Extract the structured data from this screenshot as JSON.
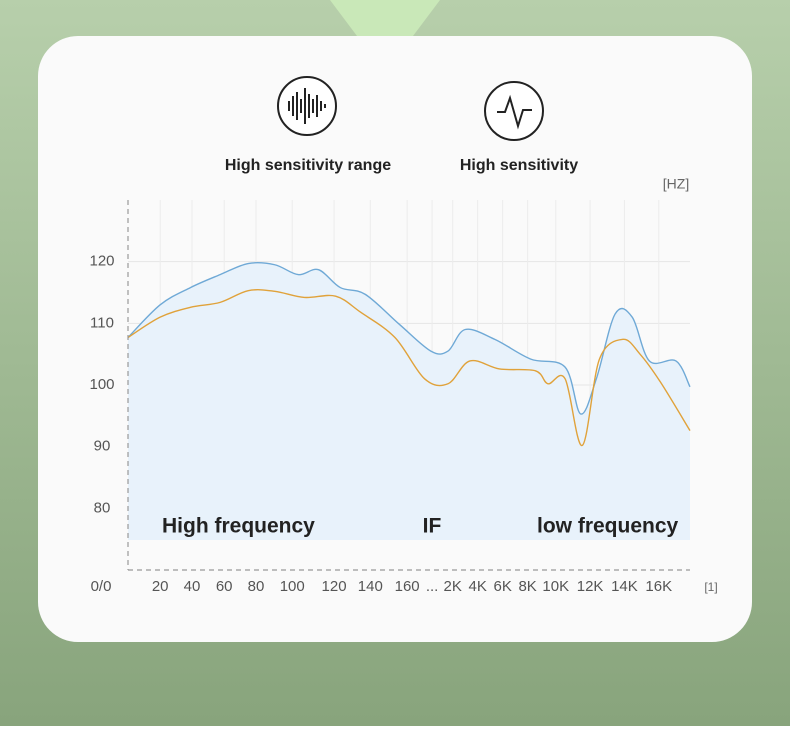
{
  "chart_data": {
    "type": "line",
    "legend": [
      "High sensitivity range",
      "High sensitivity"
    ],
    "y_label": "[HZ]",
    "x_label": "[1]",
    "origin_label": "0/0",
    "annotations": [
      "High frequency",
      "IF",
      "low frequency"
    ],
    "xlim": [
      0,
      18
    ],
    "ylim": [
      70,
      130
    ],
    "yticks": [
      80,
      90,
      100,
      110,
      120
    ],
    "xticks": [
      {
        "value": 1.03,
        "label": "20"
      },
      {
        "value": 2.05,
        "label": "40"
      },
      {
        "value": 3.08,
        "label": "60"
      },
      {
        "value": 4.1,
        "label": "80"
      },
      {
        "value": 5.26,
        "label": "100"
      },
      {
        "value": 6.6,
        "label": "120"
      },
      {
        "value": 7.76,
        "label": "140"
      },
      {
        "value": 8.94,
        "label": "160"
      },
      {
        "value": 9.74,
        "label": "..."
      },
      {
        "value": 10.4,
        "label": "2K"
      },
      {
        "value": 11.2,
        "label": "4K"
      },
      {
        "value": 12,
        "label": "6K"
      },
      {
        "value": 12.8,
        "label": "8K"
      },
      {
        "value": 13.7,
        "label": "10K"
      },
      {
        "value": 14.8,
        "label": "12K"
      },
      {
        "value": 15.9,
        "label": "14K"
      },
      {
        "value": 17,
        "label": "16K"
      }
    ],
    "grid": true,
    "series": [
      {
        "name": "High sensitivity range",
        "color": "#6fa9d6",
        "x": [
          0,
          1.03,
          2,
          2.95,
          3.85,
          4.7,
          5.45,
          6.1,
          6.8,
          7.6,
          8.7,
          9.7,
          10.25,
          10.8,
          11.75,
          12.9,
          14,
          14.5,
          15,
          15.6,
          16.15,
          16.7,
          17.55,
          18
        ],
        "values": [
          107.7,
          113,
          115.8,
          117.9,
          119.7,
          119.5,
          117.9,
          118.7,
          115.8,
          114.7,
          109.8,
          105.5,
          105.5,
          109,
          107.4,
          104.2,
          102.9,
          95.3,
          101,
          111.5,
          111,
          103.9,
          103.9,
          99.7
        ]
      },
      {
        "name": "High sensitivity",
        "color": "#e0a23a",
        "x": [
          0,
          1.03,
          2,
          2.95,
          3.85,
          4.7,
          5.65,
          6.65,
          7.45,
          8.55,
          9.5,
          10.25,
          10.95,
          11.9,
          13.05,
          13.45,
          14,
          14.55,
          15.1,
          15.85,
          16.4,
          17.05,
          18
        ],
        "values": [
          107.7,
          111,
          112.6,
          113.4,
          115.3,
          115.2,
          114.2,
          114.4,
          111.8,
          107.7,
          101,
          100.2,
          103.9,
          102.6,
          102.3,
          100.2,
          101,
          90.2,
          104.2,
          107.4,
          105,
          100.5,
          92.6
        ]
      }
    ]
  }
}
